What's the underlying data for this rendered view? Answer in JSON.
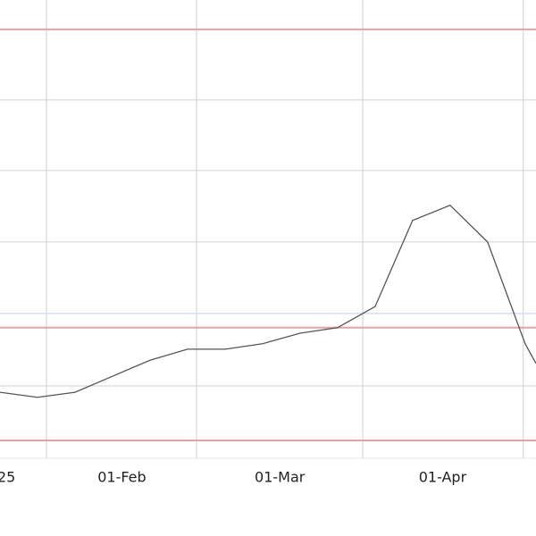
{
  "chart_data": {
    "type": "line",
    "x": [
      0,
      1,
      2,
      3,
      4,
      5,
      6,
      7,
      8,
      9,
      10,
      11,
      12,
      13,
      14,
      14.29
    ],
    "series": [
      {
        "color": "#555555",
        "values": [
          14.4,
          13.3,
          14.4,
          17.9,
          21.4,
          23.8,
          23.8,
          25.0,
          27.3,
          28.5,
          33.1,
          51.9,
          55.2,
          47.2,
          25.0,
          20.7
        ]
      }
    ],
    "xlim": [
      0,
      14.29
    ],
    "ylim": [
      0,
      100
    ],
    "xticks": [
      {
        "value": 0.17,
        "label": "25"
      },
      {
        "value": 3.25,
        "label": "01-Feb"
      },
      {
        "value": 7.46,
        "label": "01-Mar"
      },
      {
        "value": 11.8,
        "label": "01-Apr"
      }
    ],
    "xgrid": [
      1.24,
      5.24,
      9.67,
      13.95
    ],
    "ygrid": [
      78.2,
      62.8,
      47.2,
      15.8
    ],
    "ygrid_color": "#d0d0d0",
    "highlight_lines": [
      {
        "value": 31.6,
        "color": "#cfe0ee"
      }
    ],
    "reference_lines": [
      {
        "value": 93.6,
        "color": "#e8a0a0"
      },
      {
        "value": 28.5,
        "color": "#e8a0a0"
      },
      {
        "value": 3.9,
        "color": "#e8a0a0"
      }
    ]
  }
}
